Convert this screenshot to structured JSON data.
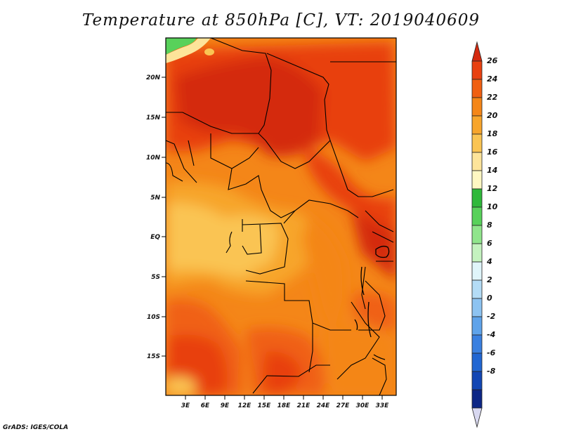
{
  "title": "Temperature at 850hPa [C], VT: 2019040609",
  "credit": "GrADS: IGES/COLA",
  "map": {
    "lon_range": [
      0,
      34
    ],
    "lat_range": [
      -20,
      24
    ],
    "lon_ticks": [
      "3E",
      "6E",
      "9E",
      "12E",
      "15E",
      "18E",
      "21E",
      "24E",
      "27E",
      "30E",
      "33E"
    ],
    "lat_ticks": [
      "20N",
      "15N",
      "10N",
      "5N",
      "EQ",
      "5S",
      "10S",
      "15S"
    ]
  },
  "colorbar": {
    "levels": [
      "26",
      "24",
      "22",
      "20",
      "18",
      "16",
      "14",
      "12",
      "10",
      "8",
      "6",
      "4",
      "2",
      "0",
      "-2",
      "-4",
      "-6",
      "-8"
    ],
    "colors": [
      "#d42a10",
      "#e84010",
      "#f06012",
      "#f48618",
      "#f7a52c",
      "#fac453",
      "#fde49a",
      "#fff7c2",
      "#2fb83a",
      "#58d15a",
      "#90e58c",
      "#c4f2bf",
      "#e0f5fa",
      "#b4dcf6",
      "#8dc3f1",
      "#5fa3ea",
      "#3a80e0",
      "#2166d2",
      "#1246b4",
      "#0c2686",
      "#d8d8f0"
    ]
  }
}
